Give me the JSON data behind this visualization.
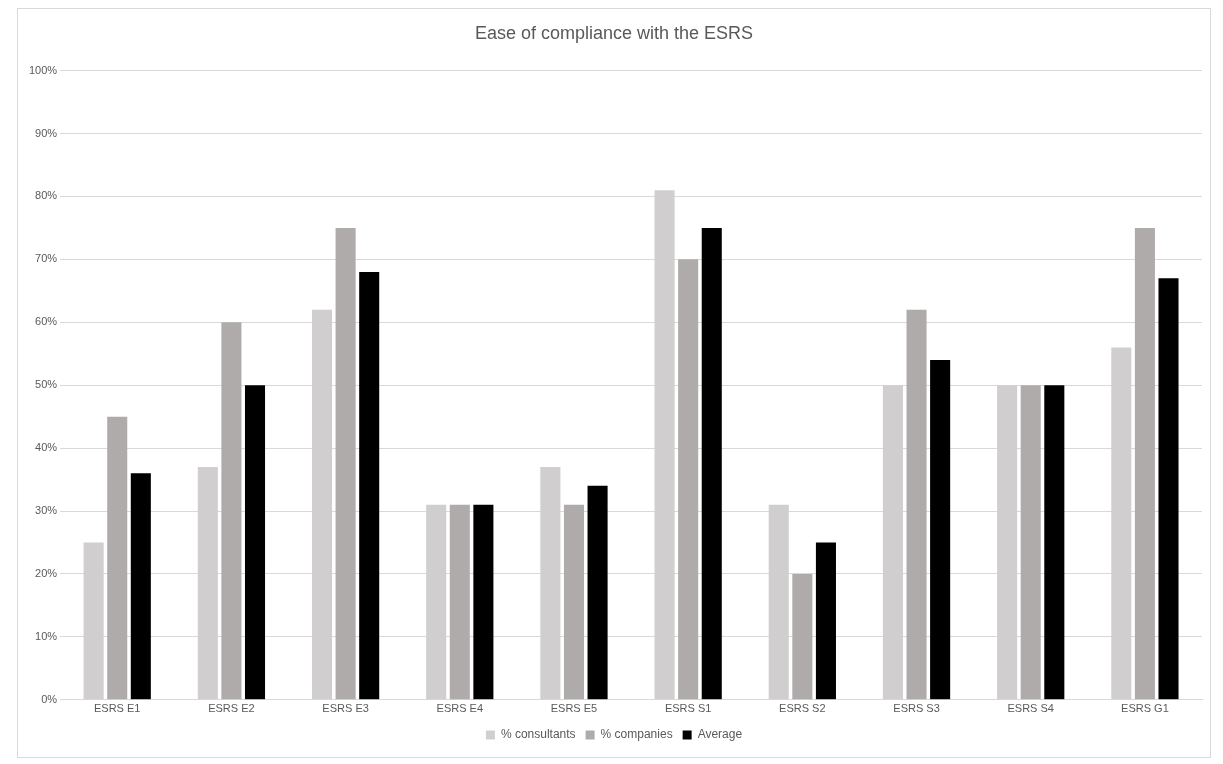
{
  "chart_data": {
    "type": "bar",
    "title": "Ease of compliance with the ESRS",
    "categories": [
      "ESRS E1",
      "ESRS E2",
      "ESRS E3",
      "ESRS E4",
      "ESRS E5",
      "ESRS S1",
      "ESRS S2",
      "ESRS S3",
      "ESRS S4",
      "ESRS G1"
    ],
    "series": [
      {
        "name": "% consultants",
        "color": "#d0cece",
        "values": [
          25,
          37,
          62,
          31,
          37,
          81,
          31,
          50,
          50,
          56
        ]
      },
      {
        "name": "% companies",
        "color": "#afabab",
        "values": [
          45,
          60,
          75,
          31,
          31,
          70,
          20,
          62,
          50,
          75
        ]
      },
      {
        "name": "Average",
        "color": "#000000",
        "values": [
          36,
          50,
          68,
          31,
          34,
          75,
          25,
          54,
          50,
          67
        ]
      }
    ],
    "ylim": [
      0,
      100
    ],
    "yticks": [
      {
        "value": 0,
        "label": "0%"
      },
      {
        "value": 10,
        "label": "10%"
      },
      {
        "value": 20,
        "label": "20%"
      },
      {
        "value": 30,
        "label": "30%"
      },
      {
        "value": 40,
        "label": "40%"
      },
      {
        "value": 50,
        "label": "50%"
      },
      {
        "value": 60,
        "label": "60%"
      },
      {
        "value": 70,
        "label": "70%"
      },
      {
        "value": 80,
        "label": "80%"
      },
      {
        "value": 90,
        "label": "90%"
      },
      {
        "value": 100,
        "label": "100%"
      }
    ],
    "grid": "y",
    "legend": "bottom"
  }
}
